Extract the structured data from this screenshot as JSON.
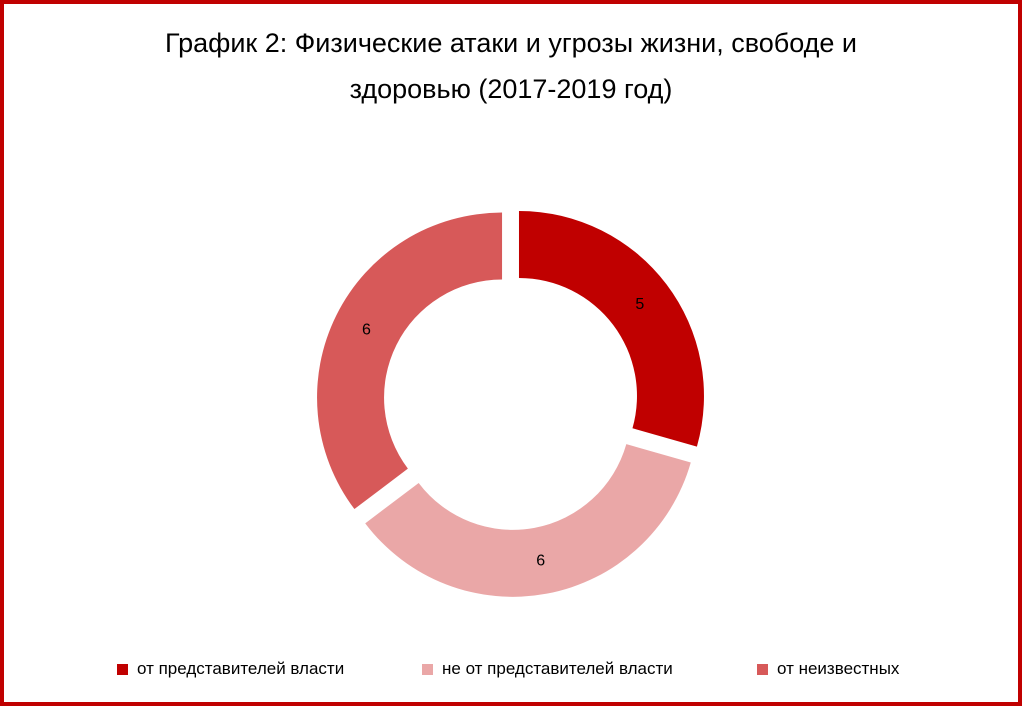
{
  "chart_data": {
    "type": "pie",
    "variant": "donut",
    "title_lines": [
      "График 2: Физические атаки и угрозы жизни, свободе и",
      "здоровью (2017-2019 год)"
    ],
    "categories": [
      "от представителей власти",
      "не от представителей власти",
      "от неизвестных"
    ],
    "values": [
      5,
      6,
      6
    ],
    "data_labels": [
      "5",
      "6",
      "6"
    ],
    "colors": [
      "#c00000",
      "#eaa7a7",
      "#d75959"
    ],
    "legend_position": "bottom",
    "exploded": true
  },
  "theme": {
    "border_color": "#c00000",
    "background": "#ffffff"
  }
}
